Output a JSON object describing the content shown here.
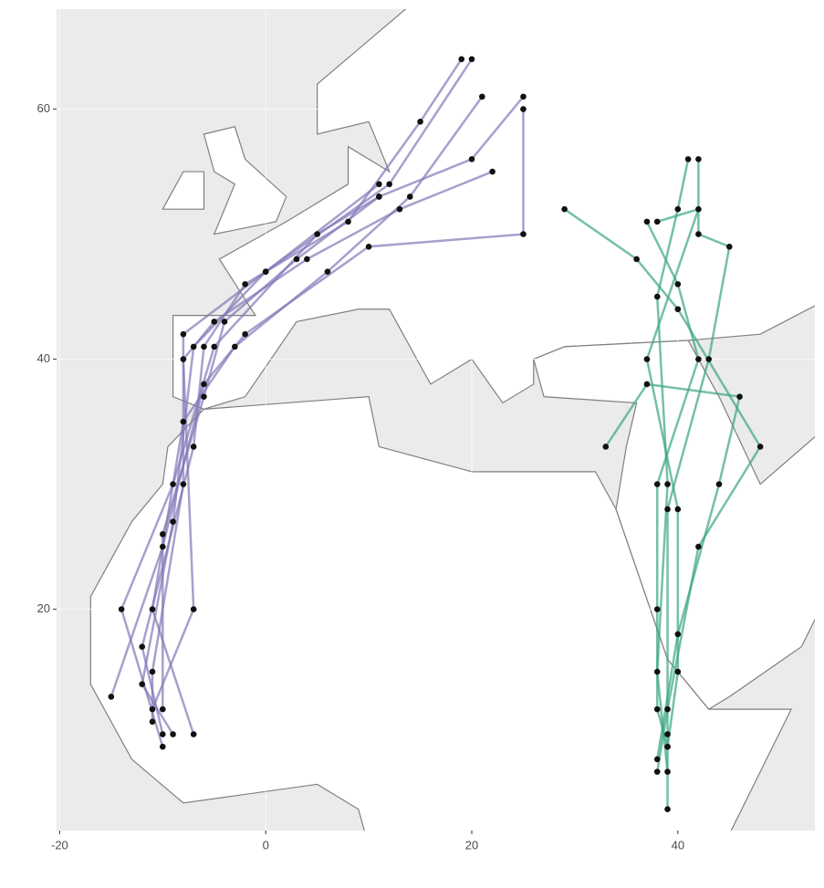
{
  "chart_data": {
    "type": "map",
    "xlim": [
      -20.3,
      53.3
    ],
    "ylim": [
      2.3,
      68
    ],
    "xticks": [
      -20,
      0,
      20,
      40
    ],
    "yticks": [
      20,
      40,
      60
    ],
    "grid": true,
    "series": [
      {
        "color": "#8078b8",
        "x": [
          20,
          12,
          0,
          -8,
          -8,
          -11,
          -11
        ],
        "y": [
          64,
          54,
          47,
          42,
          30,
          15,
          11
        ]
      },
      {
        "color": "#8078b8",
        "x": [
          19,
          15,
          8,
          -2,
          -6,
          -7,
          -12,
          -10
        ],
        "y": [
          64,
          59,
          51,
          46,
          41,
          33,
          17,
          10
        ]
      },
      {
        "color": "#8078b8",
        "x": [
          25,
          20,
          11,
          3,
          -4,
          -6,
          -10,
          -10
        ],
        "y": [
          61,
          56,
          53,
          48,
          43,
          37,
          26,
          12
        ]
      },
      {
        "color": "#8078b8",
        "x": [
          11,
          5,
          -5,
          -9,
          -14,
          -10
        ],
        "y": [
          53,
          50,
          41,
          30,
          20,
          9
        ]
      },
      {
        "color": "#8078b8",
        "x": [
          21,
          14,
          6,
          -3,
          -8,
          -11,
          -7
        ],
        "y": [
          61,
          53,
          47,
          41,
          35,
          20,
          10
        ]
      },
      {
        "color": "#8078b8",
        "x": [
          11,
          0,
          -7,
          -9,
          -12,
          -9
        ],
        "y": [
          54,
          47,
          41,
          27,
          14,
          10
        ]
      },
      {
        "color": "#8078b8",
        "x": [
          25,
          25,
          10,
          -2,
          -6,
          -10,
          -15
        ],
        "y": [
          60,
          50,
          49,
          42,
          38,
          25,
          13
        ]
      },
      {
        "color": "#8078b8",
        "x": [
          22,
          13,
          4,
          -5,
          -8,
          -7,
          -11
        ],
        "y": [
          55,
          52,
          48,
          43,
          40,
          20,
          12
        ]
      },
      {
        "color": "#3aa57f",
        "x": [
          41,
          40,
          38,
          39,
          38,
          39
        ],
        "y": [
          56,
          52,
          45,
          30,
          15,
          7
        ]
      },
      {
        "color": "#3aa57f",
        "x": [
          42,
          42,
          45,
          43,
          39,
          39,
          39
        ],
        "y": [
          56,
          50,
          49,
          40,
          28,
          10,
          4
        ]
      },
      {
        "color": "#3aa57f",
        "x": [
          29,
          36,
          40,
          48,
          42,
          39,
          38
        ],
        "y": [
          52,
          48,
          44,
          33,
          25,
          12,
          7
        ]
      },
      {
        "color": "#3aa57f",
        "x": [
          38,
          42,
          37,
          40,
          40,
          39
        ],
        "y": [
          51,
          52,
          40,
          28,
          15,
          9
        ]
      },
      {
        "color": "#3aa57f",
        "x": [
          33,
          37,
          46,
          44,
          40,
          38
        ],
        "y": [
          33,
          38,
          37,
          30,
          18,
          8
        ]
      },
      {
        "color": "#3aa57f",
        "x": [
          37,
          40,
          42,
          38,
          38,
          38,
          39
        ],
        "y": [
          51,
          46,
          40,
          30,
          20,
          12,
          9
        ]
      }
    ]
  }
}
